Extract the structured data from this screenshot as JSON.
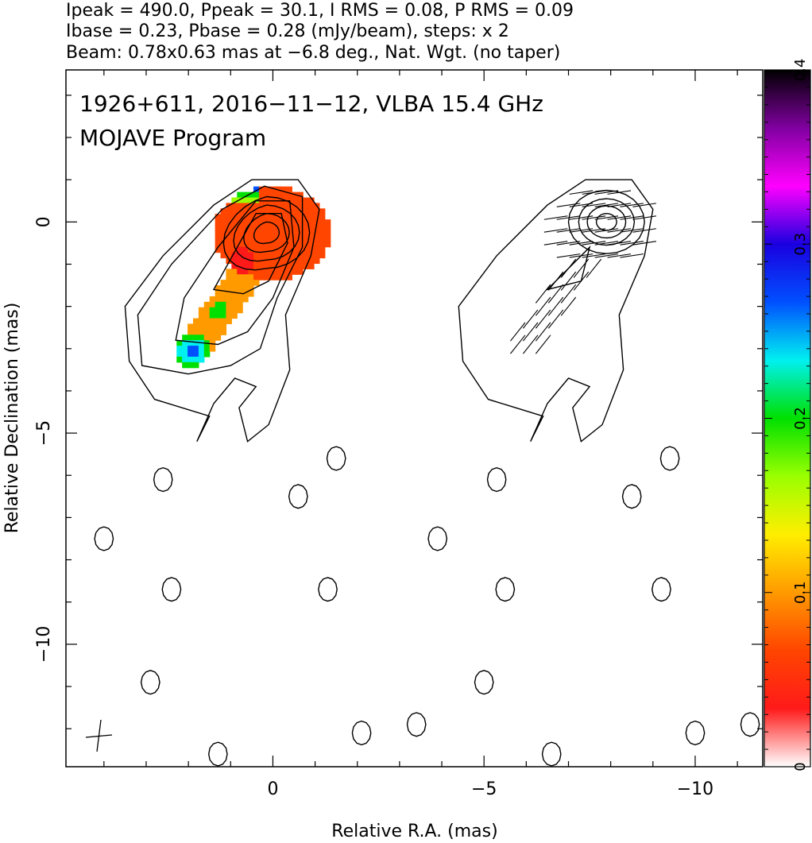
{
  "header": {
    "line1": "Ipeak = 490.0, Ppeak = 30.1, I RMS = 0.08, P RMS = 0.09",
    "line2": "Ibase = 0.23, Pbase = 0.28 (mJy/beam), steps: x 2",
    "line3": "Beam: 0.78x0.63 mas at −6.8 deg., Nat. Wgt. (no taper)"
  },
  "chart_data": {
    "type": "heatmap",
    "title_line1": "1926+611, 2016−11−12, VLBA 15.4 GHz",
    "title_line2": "MOJAVE Program",
    "xlabel": "Relative R.A. (mas)",
    "ylabel": "Relative Declination (mas)",
    "xlim": [
      4.9,
      -11.6
    ],
    "ylim": [
      -12.9,
      3.6
    ],
    "x_ticks": [
      {
        "value": 0,
        "label": "0"
      },
      {
        "value": -5,
        "label": "−5"
      },
      {
        "value": -10,
        "label": "−10"
      }
    ],
    "y_ticks": [
      {
        "value": 0,
        "label": "0"
      },
      {
        "value": -5,
        "label": "−5"
      },
      {
        "value": -10,
        "label": "−10"
      }
    ],
    "colorbar": {
      "range": [
        0,
        0.4
      ],
      "ticks": [
        {
          "value": 0,
          "label": "0"
        },
        {
          "value": 0.1,
          "label": "0.1"
        },
        {
          "value": 0.2,
          "label": "0.2"
        },
        {
          "value": 0.3,
          "label": "0.3"
        },
        {
          "value": 0.4,
          "label": "0.4"
        }
      ],
      "stops": [
        "#ffffff",
        "#ff1a1a",
        "#ff4500",
        "#ff9a00",
        "#ffee00",
        "#9aff00",
        "#00e000",
        "#00f0f0",
        "#0050ff",
        "#1a00e0",
        "#ff00ff",
        "#8000a0",
        "#000000"
      ]
    },
    "core": {
      "x": 0.0,
      "y": 0.0
    },
    "jet_knots": [
      {
        "x": 0.0,
        "y": 0.0
      },
      {
        "x": 0.6,
        "y": -1.0
      },
      {
        "x": 1.5,
        "y": -2.3
      },
      {
        "x": 2.0,
        "y": -3.0
      }
    ],
    "panel_offset_x": -7.9
  }
}
